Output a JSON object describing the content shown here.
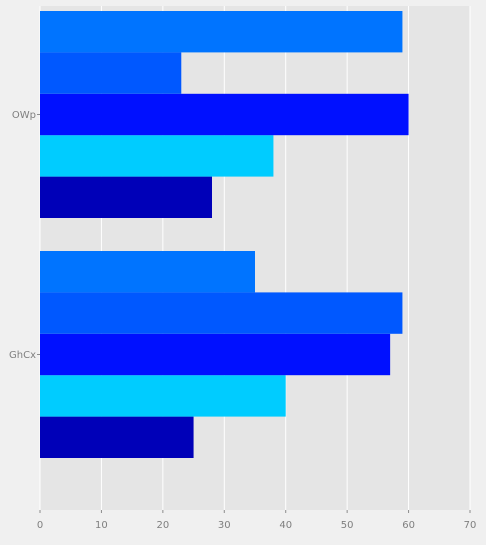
{
  "chart_data": {
    "type": "bar",
    "orientation": "horizontal",
    "categories": [
      "OWp",
      "GhCx"
    ],
    "xlim": [
      0,
      70
    ],
    "x_ticks": [
      0,
      10,
      20,
      30,
      40,
      50,
      60,
      70
    ],
    "grid": true,
    "legend": "none",
    "background_color": "#e5e5e5",
    "figure_color": "#f0f0f0",
    "grid_color": "#ffffff",
    "series": [
      {
        "color": "#0000b8",
        "values": [
          28,
          25
        ]
      },
      {
        "color": "#00ccff",
        "values": [
          38,
          40
        ]
      },
      {
        "color": "#0010ff",
        "values": [
          60,
          57
        ]
      },
      {
        "color": "#0058ff",
        "values": [
          23,
          59
        ]
      },
      {
        "color": "#0074ff",
        "values": [
          59,
          35
        ]
      }
    ]
  }
}
